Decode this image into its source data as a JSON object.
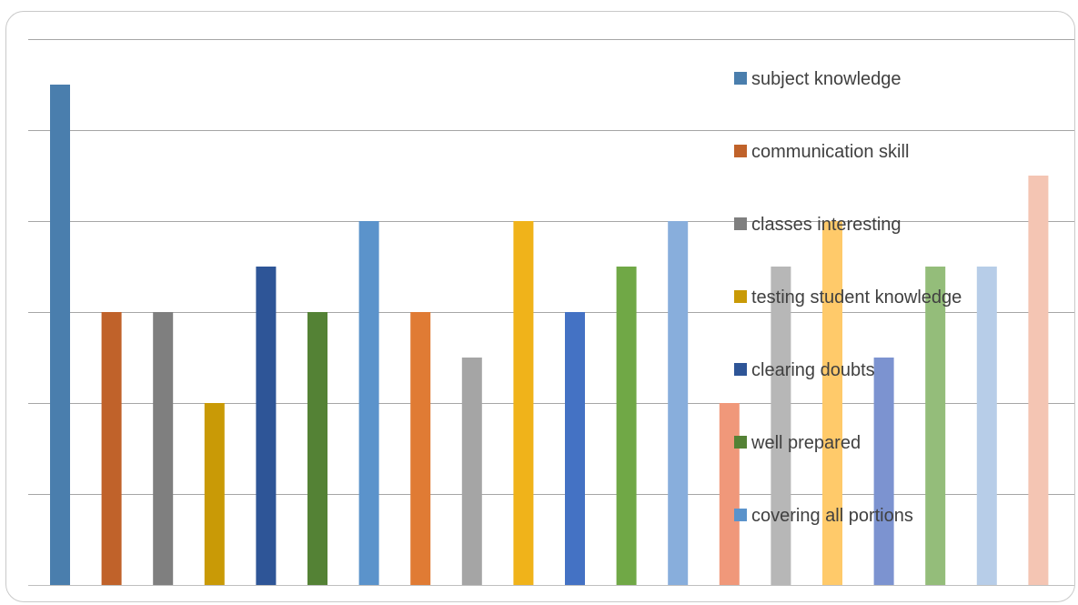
{
  "chart_data": {
    "type": "bar",
    "title": "",
    "xlabel": "",
    "ylabel": "",
    "ylim": [
      0,
      6
    ],
    "grid": true,
    "legend_position": "right",
    "values": [
      5.5,
      3,
      3,
      2,
      3.5,
      3,
      4,
      3,
      2.5,
      4,
      3,
      3.5,
      4,
      2,
      3.5,
      4,
      2.5,
      3.5,
      3.5,
      4.5
    ],
    "colors": [
      "#4a7ead",
      "#c0622a",
      "#7f7f7f",
      "#c99a06",
      "#2e5597",
      "#548235",
      "#5b93cb",
      "#e07b34",
      "#a5a5a5",
      "#f0b31a",
      "#4472c4",
      "#70a846",
      "#88aedc",
      "#f0987a",
      "#b7b7b7",
      "#ffca6a",
      "#7c93d0",
      "#94bd7a",
      "#b7cde8",
      "#f4c5b3"
    ],
    "legend": [
      {
        "label": "subject knowledge",
        "color": "#4a7ead"
      },
      {
        "label": "communication skill",
        "color": "#c0622a"
      },
      {
        "label": "classes interesting",
        "color": "#7f7f7f"
      },
      {
        "label": "testing  student knowledge",
        "color": "#c99a06"
      },
      {
        "label": "clearing doubts",
        "color": "#2e5597"
      },
      {
        "label": "well prepared",
        "color": "#548235"
      },
      {
        "label": "covering all portions",
        "color": "#5b93cb"
      }
    ]
  }
}
